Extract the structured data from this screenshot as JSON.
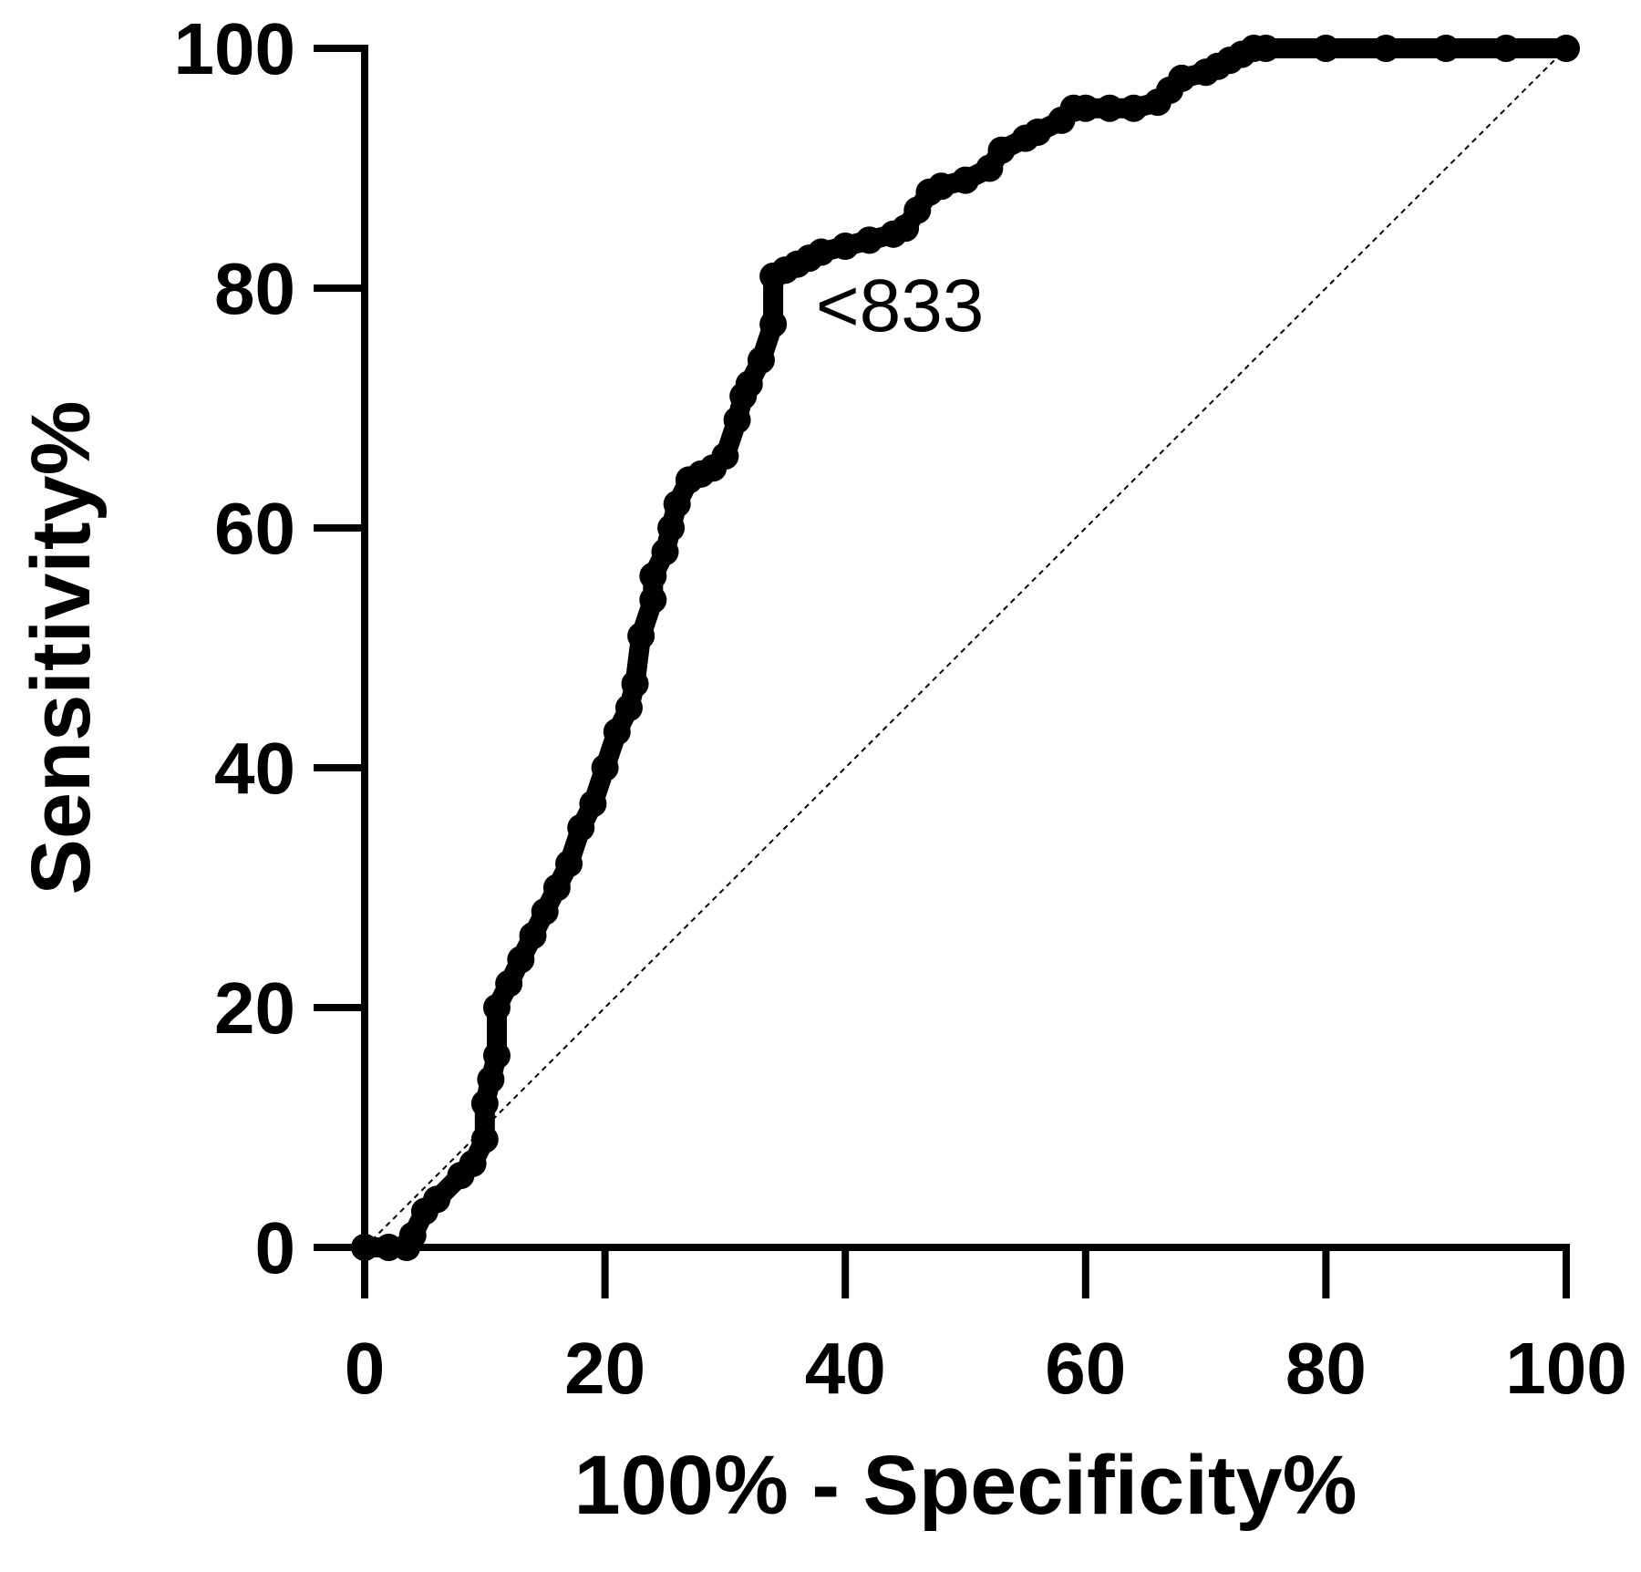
{
  "chart_data": {
    "type": "line",
    "xlabel": "100% - Specificity%",
    "ylabel": "Sensitivity%",
    "xlim": [
      0,
      100
    ],
    "ylim": [
      0,
      100
    ],
    "xticks": [
      0,
      20,
      40,
      60,
      80,
      100
    ],
    "yticks": [
      0,
      20,
      40,
      60,
      80,
      100
    ],
    "grid": false,
    "reference_line": {
      "x": [
        0,
        100
      ],
      "y": [
        0,
        100
      ],
      "style": "dashed"
    },
    "annotation": {
      "text": "<833",
      "x": 34.5,
      "y": 81
    },
    "series": [
      {
        "x": [
          0,
          2,
          3.5,
          4,
          5,
          6,
          8,
          9,
          10,
          10,
          10.5,
          11,
          11,
          12,
          13,
          14,
          15,
          16,
          17,
          18,
          19,
          20,
          21,
          22,
          22.5,
          23,
          24,
          24,
          25,
          25.5,
          26,
          27,
          28,
          29,
          30,
          31,
          31.5,
          32,
          33,
          34,
          34,
          35,
          36,
          37,
          38,
          40,
          42,
          44,
          45,
          46,
          47,
          48,
          50,
          52,
          53,
          55,
          56,
          58,
          59,
          60,
          62,
          64,
          66,
          67,
          68,
          70,
          71,
          72,
          73,
          74,
          75,
          80,
          85,
          90,
          95,
          100
        ],
        "y": [
          0,
          0,
          0,
          1,
          3,
          4,
          6,
          7,
          9,
          12,
          14,
          16,
          20,
          22,
          24,
          26,
          28,
          30,
          32,
          35,
          37,
          40,
          43,
          45,
          47,
          51,
          54,
          56,
          58,
          60,
          62,
          64,
          64.5,
          65,
          66,
          69,
          71,
          72,
          74,
          77,
          81,
          81.5,
          82,
          82.5,
          83,
          83.5,
          84,
          84.5,
          85,
          86.5,
          88,
          88.5,
          89,
          90,
          91.5,
          92.5,
          93,
          94,
          95,
          95,
          95,
          95,
          95.5,
          96.5,
          97.5,
          98,
          98.5,
          99,
          99.5,
          100,
          100,
          100,
          100,
          100,
          100,
          100
        ]
      }
    ]
  }
}
